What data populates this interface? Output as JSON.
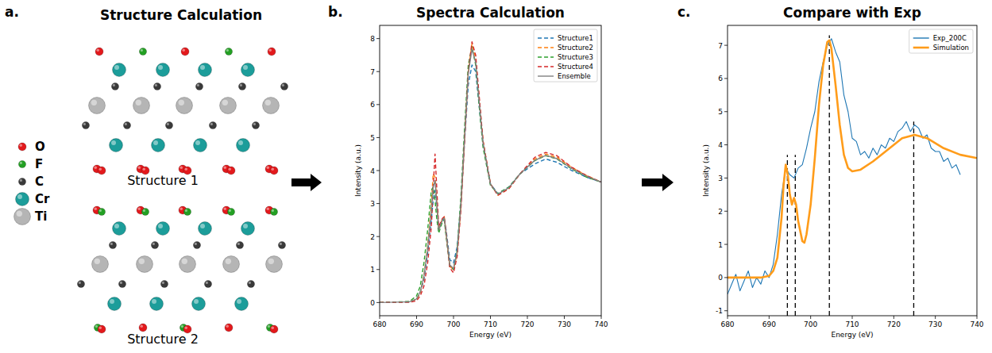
{
  "diagram": {
    "panel_label": "a.",
    "title": "Structure Calculation",
    "legend": [
      {
        "label": "O",
        "color": "#e3191c"
      },
      {
        "label": "F",
        "color": "#23a023"
      },
      {
        "label": "C",
        "color": "#3a3a3a"
      },
      {
        "label": "Cr",
        "color": "#1c9d9a"
      },
      {
        "label": "Ti",
        "color": "#b5b5b5"
      }
    ],
    "structures": [
      {
        "label": "Structure 1"
      },
      {
        "label": "Structure 2"
      }
    ]
  },
  "chart_data": [
    {
      "type": "line",
      "panel_label": "b.",
      "title": "Spectra Calculation",
      "x_label": "Energy (eV)",
      "y_label": "Intensity (a.u.)",
      "xlim": [
        680,
        740
      ],
      "ylim": [
        -0.4,
        8.4
      ],
      "xticks": [
        680,
        690,
        700,
        710,
        720,
        730,
        740
      ],
      "yticks": [
        0,
        1,
        2,
        3,
        4,
        5,
        6,
        7,
        8
      ],
      "legend": "upper right",
      "x": [
        680,
        688,
        690,
        691,
        692,
        693,
        694,
        694.5,
        695,
        695.5,
        696,
        697,
        697.5,
        698,
        699,
        700,
        701,
        702,
        703,
        704,
        705,
        706,
        707,
        708,
        710,
        712,
        715,
        718,
        722,
        725,
        728,
        732,
        736,
        740
      ],
      "series": [
        {
          "name": "Structure1",
          "color": "#1f77b4",
          "line_style": "dashed",
          "values": [
            0,
            0.02,
            0.1,
            0.3,
            0.7,
            1.5,
            2.5,
            3.1,
            3.4,
            2.9,
            2.2,
            2.5,
            2.55,
            2.2,
            1.3,
            1.2,
            1.7,
            3.0,
            4.9,
            6.6,
            7.2,
            7.0,
            5.9,
            4.8,
            3.6,
            3.3,
            3.5,
            3.9,
            4.2,
            4.35,
            4.25,
            4.0,
            3.8,
            3.65
          ]
        },
        {
          "name": "Structure2",
          "color": "#ff7f0e",
          "line_style": "dashed",
          "values": [
            0,
            0.02,
            0.1,
            0.3,
            0.8,
            1.7,
            3.0,
            3.9,
            3.8,
            3.0,
            2.2,
            2.55,
            2.6,
            2.1,
            1.1,
            1.0,
            1.5,
            2.9,
            5.0,
            7.0,
            7.85,
            7.4,
            6.1,
            4.9,
            3.6,
            3.25,
            3.45,
            3.9,
            4.35,
            4.5,
            4.4,
            4.1,
            3.85,
            3.65
          ]
        },
        {
          "name": "Structure3",
          "color": "#2ca02c",
          "line_style": "dashed",
          "values": [
            0,
            0.03,
            0.2,
            0.5,
            1.2,
            2.2,
            3.4,
            3.5,
            3.1,
            2.5,
            2.1,
            2.45,
            2.5,
            2.0,
            1.1,
            1.0,
            1.6,
            3.2,
            5.3,
            7.2,
            7.75,
            7.2,
            5.9,
            4.7,
            3.55,
            3.3,
            3.5,
            3.9,
            4.3,
            4.45,
            4.35,
            4.05,
            3.8,
            3.65
          ]
        },
        {
          "name": "Structure4",
          "color": "#d62728",
          "line_style": "dashed",
          "values": [
            0,
            0.01,
            0.05,
            0.2,
            0.5,
            1.2,
            2.3,
            3.5,
            4.5,
            3.4,
            2.3,
            2.55,
            2.6,
            2.1,
            1.05,
            0.9,
            1.4,
            2.8,
            4.9,
            7.0,
            7.9,
            7.5,
            6.2,
            4.9,
            3.6,
            3.25,
            3.45,
            3.9,
            4.4,
            4.55,
            4.45,
            4.1,
            3.85,
            3.65
          ]
        },
        {
          "name": "Ensemble",
          "color": "#808080",
          "line_style": "solid",
          "values": [
            0,
            0.02,
            0.11,
            0.33,
            0.8,
            1.65,
            2.8,
            3.5,
            3.7,
            2.95,
            2.2,
            2.51,
            2.56,
            2.1,
            1.14,
            1.03,
            1.55,
            2.98,
            5.03,
            6.95,
            7.68,
            7.28,
            6.03,
            4.83,
            3.59,
            3.28,
            3.48,
            3.9,
            4.31,
            4.46,
            4.36,
            4.06,
            3.83,
            3.65
          ]
        }
      ]
    },
    {
      "type": "line",
      "panel_label": "c.",
      "title": "Compare with Exp",
      "x_label": "Energy (eV)",
      "y_label": "Intensity (a.u.)",
      "xlim": [
        680,
        740
      ],
      "ylim": [
        -1.15,
        7.6
      ],
      "xticks": [
        680,
        690,
        700,
        710,
        720,
        730,
        740
      ],
      "yticks": [
        -1,
        0,
        1,
        2,
        3,
        4,
        5,
        6,
        7
      ],
      "legend": "upper right",
      "series": [
        {
          "name": "Exp_200C",
          "color": "#1f77b4",
          "line_style": "solid",
          "x": [
            680,
            681,
            682,
            683,
            684,
            685,
            686,
            687,
            688,
            689,
            690,
            691,
            692,
            693,
            694,
            695,
            696,
            697,
            698,
            699,
            700,
            701,
            702,
            703,
            704,
            705,
            706,
            707,
            708,
            709,
            710,
            711,
            712,
            713,
            714,
            715,
            716,
            717,
            718,
            719,
            720,
            721,
            722,
            723,
            724,
            725,
            726,
            727,
            728,
            729,
            730,
            731,
            732,
            733,
            734,
            735,
            736
          ],
          "values": [
            -0.5,
            -0.2,
            0.1,
            -0.4,
            -0.1,
            0.2,
            -0.3,
            0.0,
            -0.2,
            0.2,
            0.0,
            0.4,
            1.3,
            2.5,
            3.3,
            3.1,
            3.0,
            3.3,
            3.4,
            3.9,
            4.5,
            5.0,
            5.9,
            6.5,
            7.0,
            7.2,
            6.8,
            6.5,
            5.5,
            5.0,
            4.2,
            4.1,
            3.7,
            3.8,
            3.6,
            3.9,
            3.7,
            4.0,
            3.9,
            4.2,
            4.1,
            4.4,
            4.5,
            4.7,
            4.4,
            4.6,
            4.5,
            4.2,
            4.3,
            3.9,
            3.8,
            3.8,
            3.5,
            3.6,
            3.3,
            3.4,
            3.1
          ]
        },
        {
          "name": "Simulation",
          "color": "#ff9c1a",
          "line_style": "solid",
          "x": [
            680,
            688,
            690,
            691,
            692,
            693,
            693.5,
            694,
            694.5,
            695,
            695.5,
            696,
            696.5,
            697,
            698,
            698.5,
            699,
            700,
            701,
            702,
            703,
            704,
            704.5,
            705,
            706,
            707,
            708,
            709,
            710,
            712,
            715,
            718,
            722,
            725,
            728,
            732,
            736,
            740
          ],
          "values": [
            0,
            0,
            0.05,
            0.2,
            0.6,
            1.8,
            2.8,
            3.4,
            3.1,
            2.5,
            2.2,
            2.4,
            2.2,
            1.7,
            1.1,
            1.05,
            1.3,
            2.2,
            3.6,
            5.2,
            6.4,
            7.1,
            7.15,
            6.9,
            5.8,
            4.6,
            3.7,
            3.3,
            3.2,
            3.25,
            3.5,
            3.8,
            4.2,
            4.3,
            4.2,
            3.9,
            3.7,
            3.6
          ]
        }
      ],
      "vlines": [
        {
          "x": 694.4,
          "y": 3.7
        },
        {
          "x": 696.3,
          "y": 3.7
        },
        {
          "x": 704.5,
          "y": 7.3
        },
        {
          "x": 724.8,
          "y": 4.7
        }
      ]
    }
  ]
}
